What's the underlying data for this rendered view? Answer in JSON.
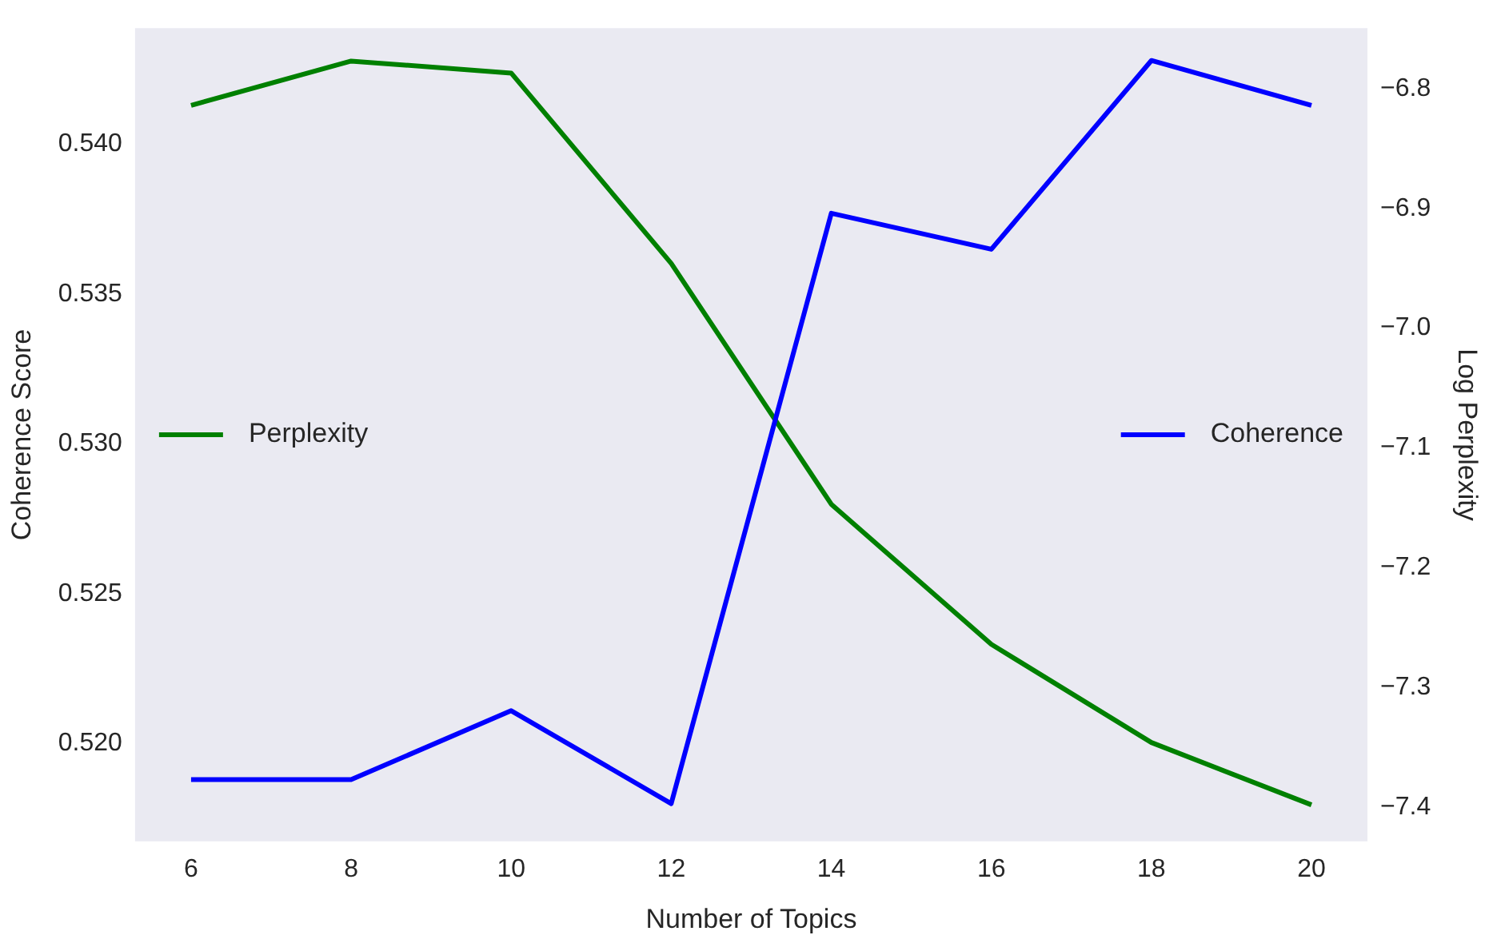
{
  "chart_data": {
    "type": "line",
    "xlabel": "Number of Topics",
    "ylabel": "Coherence Score",
    "y2label": "Log Perplexity",
    "x": [
      6,
      8,
      10,
      12,
      14,
      16,
      18,
      20
    ],
    "xlim": [
      5.3,
      20.7
    ],
    "xticks": [
      6,
      8,
      10,
      12,
      14,
      16,
      18,
      20
    ],
    "ylim": [
      0.51674,
      0.54388
    ],
    "yticks": [
      {
        "value": 0.52,
        "label": "0.520"
      },
      {
        "value": 0.525,
        "label": "0.525"
      },
      {
        "value": 0.53,
        "label": "0.530"
      },
      {
        "value": 0.535,
        "label": "0.535"
      },
      {
        "value": 0.54,
        "label": "0.540"
      }
    ],
    "y2lim": [
      -7.4285,
      -6.7495
    ],
    "y2ticks": [
      {
        "value": -7.4,
        "label": "−7.4"
      },
      {
        "value": -7.3,
        "label": "−7.3"
      },
      {
        "value": -7.2,
        "label": "−7.2"
      },
      {
        "value": -7.1,
        "label": "−7.1"
      },
      {
        "value": -7.0,
        "label": "−7.0"
      },
      {
        "value": -6.9,
        "label": "−6.9"
      },
      {
        "value": -6.8,
        "label": "−6.8"
      }
    ],
    "grid": false,
    "legend": "center",
    "marker": "none",
    "line_style": "solid",
    "series": [
      {
        "name": "Coherence",
        "color": "#0000ff",
        "values": [
          0.5188,
          0.5188,
          0.5211,
          0.518,
          0.5377,
          0.5365,
          0.5428,
          0.5413
        ]
      },
      {
        "name": "Perplexity",
        "color": "#008000",
        "axis": "y2",
        "values": [
          -6.814,
          -6.777,
          -6.787,
          -6.946,
          -7.147,
          -7.264,
          -7.346,
          -7.398
        ]
      }
    ]
  }
}
